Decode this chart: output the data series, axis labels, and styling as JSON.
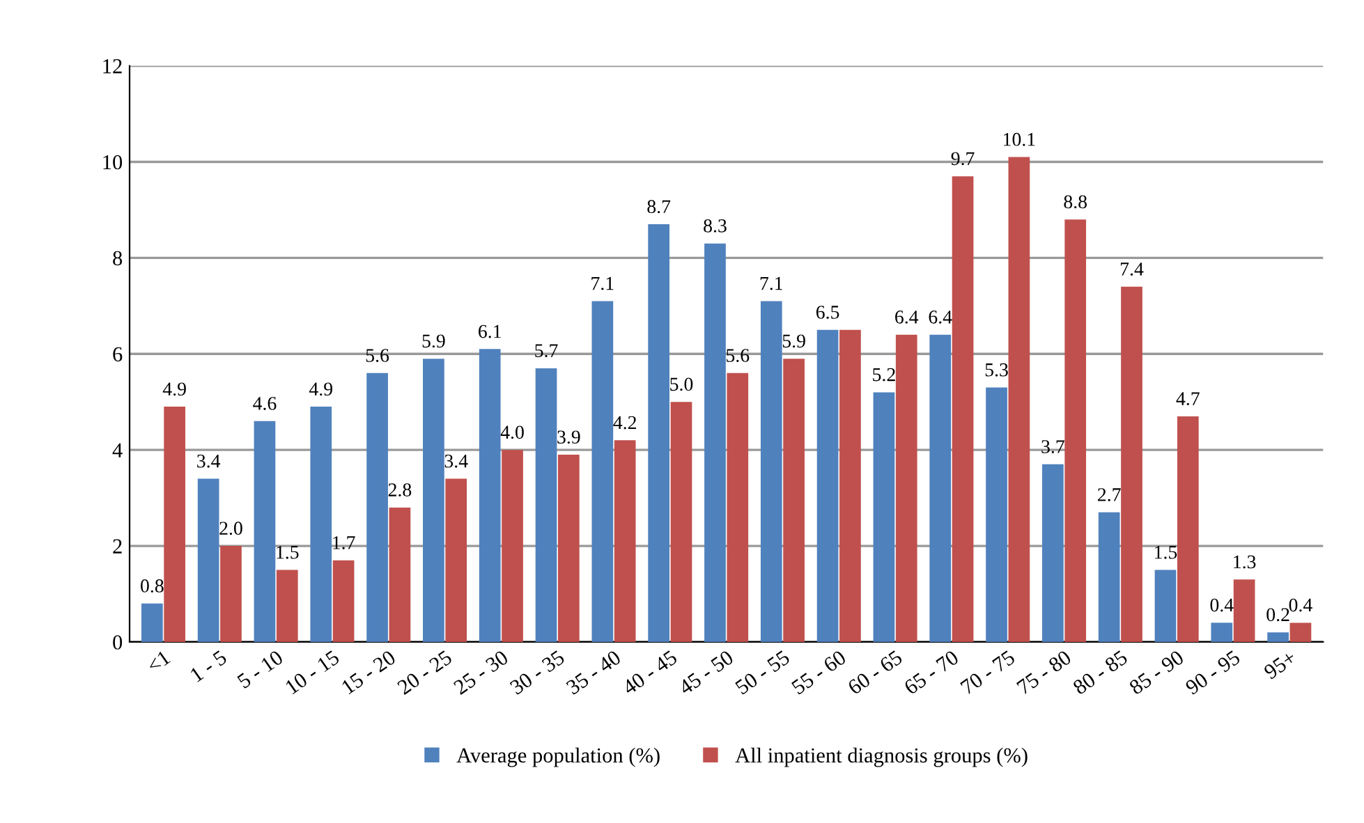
{
  "chart_data": {
    "type": "bar",
    "categories": [
      "<1",
      "1 - 5",
      "5 - 10",
      "10 - 15",
      "15 - 20",
      "20 - 25",
      "25 - 30",
      "30 - 35",
      "35 - 40",
      "40 - 45",
      "45 - 50",
      "50 - 55",
      "55 - 60",
      "60 - 65",
      "65 - 70",
      "70 - 75",
      "75 - 80",
      "80 - 85",
      "85 - 90",
      "90 - 95",
      "95+"
    ],
    "series": [
      {
        "name": "Average population (%)",
        "color": "#4f81bd",
        "values": [
          0.8,
          3.4,
          4.6,
          4.9,
          5.6,
          5.9,
          6.1,
          5.7,
          7.1,
          8.7,
          8.3,
          7.1,
          6.5,
          5.2,
          6.4,
          5.3,
          3.7,
          2.7,
          1.5,
          0.4,
          0.2
        ],
        "value_labels": [
          "0.8",
          "3.4",
          "4.6",
          "4.9",
          "5.6",
          "5.9",
          "6.1",
          "5.7",
          "7.1",
          "8.7",
          "8.3",
          "7.1",
          "6.5",
          "5.2",
          "6.4",
          "5.3",
          "3.7",
          "2.7",
          "1.5",
          "0.4",
          "0.2"
        ]
      },
      {
        "name": "All inpatient diagnosis groups (%)",
        "color": "#c0504d",
        "values": [
          4.9,
          2.0,
          1.5,
          1.7,
          2.8,
          3.4,
          4.0,
          3.9,
          4.2,
          5.0,
          5.6,
          5.9,
          6.5,
          6.4,
          9.7,
          10.1,
          8.8,
          7.4,
          4.7,
          1.3,
          0.4
        ],
        "value_labels": [
          "4.9",
          "2.0",
          "1.5",
          "1.7",
          "2.8",
          "3.4",
          "4.0",
          "3.9",
          "4.2",
          "5.0",
          "5.6",
          "5.9",
          null,
          "6.4",
          "9.7",
          "10.1",
          "8.8",
          "7.4",
          "4.7",
          "1.3",
          "0.4"
        ]
      }
    ],
    "ylim": [
      0,
      12
    ],
    "yticks": [
      0,
      2,
      4,
      6,
      8,
      10,
      12
    ],
    "grid": "y",
    "legend": "bottom"
  }
}
